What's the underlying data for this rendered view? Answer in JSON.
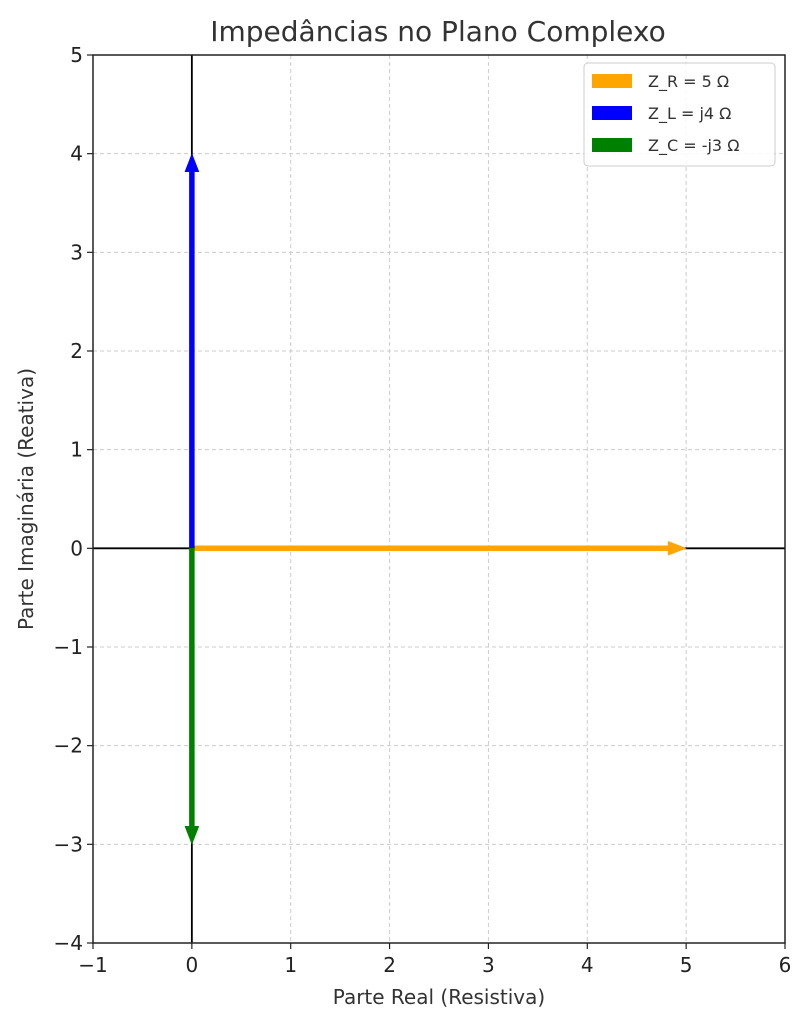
{
  "chart_data": {
    "type": "line",
    "title": "Impedâncias no Plano Complexo",
    "xlabel": "Parte Real (Resistiva)",
    "ylabel": "Parte Imaginária (Reativa)",
    "xlim": [
      -1,
      6
    ],
    "ylim": [
      -4,
      5
    ],
    "x_ticks": [
      -1,
      0,
      1,
      2,
      3,
      4,
      5,
      6
    ],
    "y_ticks": [
      -4,
      -3,
      -2,
      -1,
      0,
      1,
      2,
      3,
      4,
      5
    ],
    "x_tick_labels": [
      "−1",
      "0",
      "1",
      "2",
      "3",
      "4",
      "5",
      "6"
    ],
    "y_tick_labels": [
      "−4",
      "−3",
      "−2",
      "−1",
      "0",
      "1",
      "2",
      "3",
      "4",
      "5"
    ],
    "grid": true,
    "legend_position": "top-right",
    "series": [
      {
        "name": "Z_R = 5 Ω",
        "color": "#FFA500",
        "from": [
          0,
          0
        ],
        "to": [
          5,
          0
        ]
      },
      {
        "name": "Z_L = j4 Ω",
        "color": "#0000FF",
        "from": [
          0,
          0
        ],
        "to": [
          0,
          4
        ]
      },
      {
        "name": "Z_C = -j3 Ω",
        "color": "#008000",
        "from": [
          0,
          0
        ],
        "to": [
          0,
          -3
        ]
      }
    ]
  }
}
